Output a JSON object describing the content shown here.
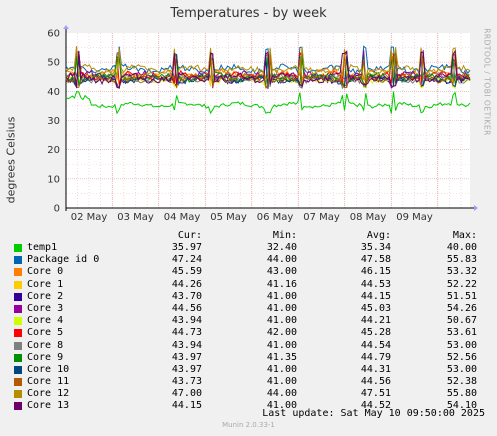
{
  "chart_data": {
    "type": "line",
    "title": "Temperatures - by week",
    "ylabel": "degrees Celsius",
    "ylim": [
      0,
      60
    ],
    "yticks": [
      0,
      10,
      20,
      30,
      40,
      50,
      60
    ],
    "categories": [
      "02 May",
      "03 May",
      "04 May",
      "05 May",
      "06 May",
      "07 May",
      "08 May",
      "09 May"
    ],
    "x_range": [
      "2025-05-01 11:00",
      "2025-05-10 09:50"
    ],
    "grid": true,
    "legend_position": "bottom",
    "legend_headers": [
      "Cur:",
      "Min:",
      "Avg:",
      "Max:"
    ],
    "series": [
      {
        "name": "temp1",
        "color": "#00cc00",
        "cur": "35.97",
        "min": "32.40",
        "avg": "35.34",
        "max": "40.00"
      },
      {
        "name": "Package id 0",
        "color": "#0066b3",
        "cur": "47.24",
        "min": "44.00",
        "avg": "47.58",
        "max": "55.83"
      },
      {
        "name": "Core 0",
        "color": "#ff8000",
        "cur": "45.59",
        "min": "43.00",
        "avg": "46.15",
        "max": "53.32"
      },
      {
        "name": "Core 1",
        "color": "#ffcc00",
        "cur": "44.26",
        "min": "41.16",
        "avg": "44.53",
        "max": "52.22"
      },
      {
        "name": "Core 2",
        "color": "#330099",
        "cur": "43.70",
        "min": "41.00",
        "avg": "44.15",
        "max": "51.51"
      },
      {
        "name": "Core 3",
        "color": "#990099",
        "cur": "44.56",
        "min": "41.00",
        "avg": "45.03",
        "max": "54.26"
      },
      {
        "name": "Core 4",
        "color": "#ccff00",
        "cur": "43.94",
        "min": "41.00",
        "avg": "44.21",
        "max": "50.67"
      },
      {
        "name": "Core 5",
        "color": "#ff0000",
        "cur": "44.73",
        "min": "42.00",
        "avg": "45.28",
        "max": "53.61"
      },
      {
        "name": "Core 8",
        "color": "#808080",
        "cur": "43.94",
        "min": "41.00",
        "avg": "44.54",
        "max": "53.00"
      },
      {
        "name": "Core 9",
        "color": "#008f00",
        "cur": "43.97",
        "min": "41.35",
        "avg": "44.79",
        "max": "52.56"
      },
      {
        "name": "Core 10",
        "color": "#00487d",
        "cur": "43.97",
        "min": "41.00",
        "avg": "44.31",
        "max": "53.00"
      },
      {
        "name": "Core 11",
        "color": "#b35a00",
        "cur": "43.73",
        "min": "41.00",
        "avg": "44.56",
        "max": "52.38"
      },
      {
        "name": "Core 12",
        "color": "#b38f00",
        "cur": "47.00",
        "min": "44.00",
        "avg": "47.51",
        "max": "55.80"
      },
      {
        "name": "Core 13",
        "color": "#6b006b",
        "cur": "44.15",
        "min": "41.00",
        "avg": "44.52",
        "max": "54.10"
      }
    ]
  },
  "last_update": "Last update: Sat May 10 09:50:00 2025",
  "watermark": "RRDTOOL / TOBI OETIKER",
  "footer": "Munin 2.0.33-1"
}
